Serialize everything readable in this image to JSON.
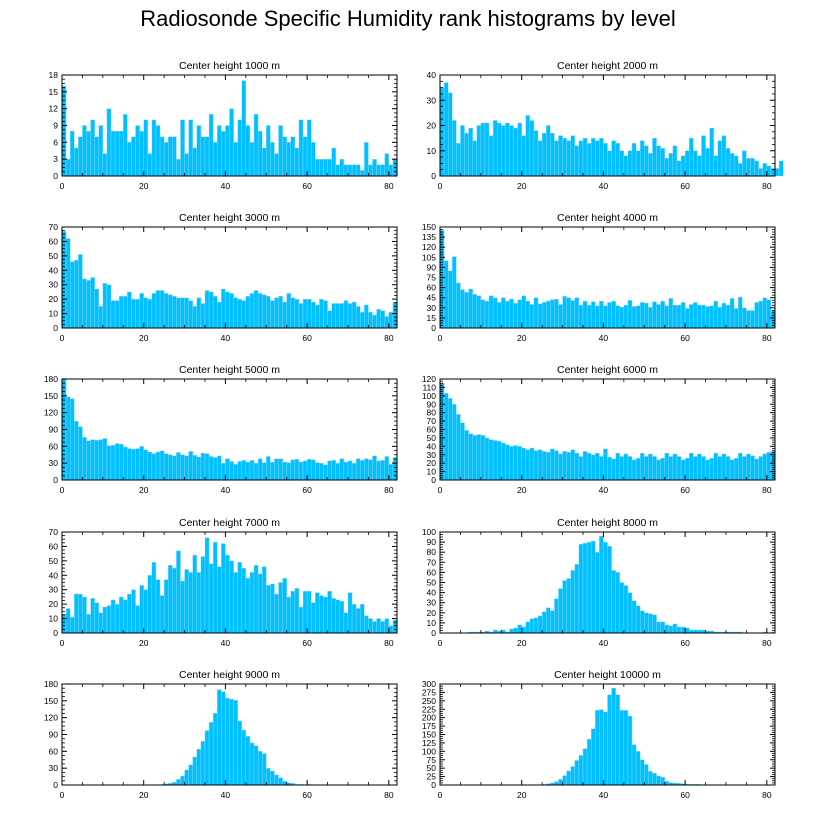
{
  "title": "Radiosonde Specific Humidity rank histograms by level",
  "colors": {
    "bar": "#00c0ff",
    "bar_edge": "#8fdcff",
    "axis": "#000000"
  },
  "chart_data": [
    {
      "type": "bar",
      "title": "Center height 1000 m",
      "xlim": [
        0,
        82
      ],
      "ylim": [
        0,
        18
      ],
      "yticks": [
        0,
        3,
        6,
        9,
        12,
        15,
        18
      ],
      "xticks": [
        0,
        20,
        40,
        60,
        80
      ],
      "values": [
        16,
        3,
        8,
        5,
        7,
        9,
        8,
        10,
        7,
        9,
        4,
        12,
        8,
        8,
        8,
        11,
        6,
        7,
        9,
        8,
        10,
        4,
        10,
        9,
        7,
        6,
        7,
        7,
        3,
        10,
        4,
        10,
        5,
        9,
        7,
        7,
        11,
        6,
        9,
        8,
        9,
        12,
        6,
        10,
        17,
        9,
        6,
        11,
        8,
        5,
        9,
        6,
        4,
        9,
        7,
        6,
        7,
        5,
        10,
        7,
        10,
        6,
        3,
        3,
        3,
        3,
        5,
        2,
        3,
        2,
        2,
        2,
        2,
        1,
        6,
        2,
        3,
        2,
        2,
        4,
        2,
        3
      ]
    },
    {
      "type": "bar",
      "title": "Center height 2000 m",
      "xlim": [
        0,
        82
      ],
      "ylim": [
        0,
        40
      ],
      "yticks": [
        0,
        10,
        20,
        30,
        40
      ],
      "xticks": [
        0,
        20,
        40,
        60,
        80
      ],
      "values": [
        35,
        37,
        33,
        22,
        13,
        20,
        17,
        19,
        14,
        20,
        21,
        21,
        16,
        22,
        21,
        20,
        21,
        20,
        19,
        21,
        16,
        24,
        22,
        18,
        14,
        17,
        20,
        17,
        14,
        16,
        15,
        14,
        16,
        12,
        14,
        15,
        13,
        15,
        14,
        15,
        13,
        10,
        14,
        13,
        10,
        8,
        10,
        13,
        10,
        14,
        12,
        9,
        15,
        12,
        11,
        7,
        9,
        12,
        6,
        8,
        10,
        15,
        10,
        8,
        16,
        11,
        19,
        8,
        14,
        16,
        11,
        9,
        8,
        5,
        10,
        7,
        7,
        6,
        3,
        5,
        4,
        3,
        3,
        6
      ]
    },
    {
      "type": "bar",
      "title": "Center height 3000 m",
      "xlim": [
        0,
        82
      ],
      "ylim": [
        0,
        70
      ],
      "yticks": [
        0,
        10,
        20,
        30,
        40,
        50,
        60,
        70
      ],
      "xticks": [
        0,
        20,
        40,
        60,
        80
      ],
      "values": [
        67,
        62,
        46,
        47,
        51,
        34,
        33,
        35,
        27,
        15,
        31,
        30,
        19,
        19,
        22,
        22,
        25,
        20,
        20,
        24,
        21,
        20,
        24,
        26,
        26,
        24,
        23,
        22,
        21,
        21,
        21,
        19,
        15,
        21,
        17,
        26,
        25,
        22,
        18,
        27,
        25,
        24,
        21,
        20,
        19,
        22,
        24,
        26,
        24,
        23,
        22,
        19,
        21,
        22,
        18,
        24,
        21,
        20,
        17,
        20,
        20,
        18,
        16,
        20,
        19,
        12,
        17,
        17,
        17,
        19,
        17,
        18,
        15,
        11,
        16,
        11,
        9,
        13,
        12,
        8,
        11,
        18
      ]
    },
    {
      "type": "bar",
      "title": "Center height 4000 m",
      "xlim": [
        0,
        82
      ],
      "ylim": [
        0,
        150
      ],
      "yticks": [
        0,
        15,
        30,
        45,
        60,
        75,
        90,
        105,
        120,
        135,
        150
      ],
      "xticks": [
        0,
        20,
        40,
        60,
        80
      ],
      "values": [
        145,
        100,
        85,
        106,
        67,
        57,
        53,
        58,
        50,
        48,
        42,
        40,
        48,
        45,
        38,
        45,
        40,
        43,
        37,
        42,
        48,
        40,
        35,
        45,
        36,
        38,
        40,
        42,
        43,
        35,
        47,
        45,
        41,
        45,
        34,
        40,
        34,
        39,
        33,
        40,
        33,
        38,
        40,
        33,
        31,
        34,
        41,
        32,
        33,
        38,
        37,
        31,
        39,
        35,
        40,
        33,
        44,
        34,
        34,
        38,
        29,
        35,
        38,
        34,
        34,
        32,
        33,
        40,
        31,
        37,
        34,
        44,
        29,
        46,
        30,
        26,
        26,
        38,
        40,
        45,
        42,
        26
      ]
    },
    {
      "type": "bar",
      "title": "Center height 5000 m",
      "xlim": [
        0,
        82
      ],
      "ylim": [
        0,
        180
      ],
      "yticks": [
        0,
        30,
        60,
        90,
        120,
        150,
        180
      ],
      "xticks": [
        0,
        20,
        40,
        60,
        80
      ],
      "values": [
        181,
        148,
        145,
        105,
        95,
        76,
        70,
        72,
        71,
        72,
        74,
        61,
        62,
        65,
        64,
        59,
        56,
        55,
        56,
        60,
        54,
        50,
        47,
        50,
        52,
        47,
        45,
        43,
        49,
        45,
        43,
        51,
        44,
        41,
        48,
        47,
        42,
        40,
        43,
        30,
        38,
        33,
        28,
        33,
        35,
        32,
        35,
        30,
        38,
        31,
        42,
        32,
        38,
        38,
        32,
        31,
        36,
        37,
        32,
        34,
        37,
        36,
        31,
        30,
        27,
        34,
        35,
        30,
        38,
        32,
        34,
        30,
        38,
        35,
        38,
        36,
        43,
        34,
        35,
        42,
        28,
        40
      ]
    },
    {
      "type": "bar",
      "title": "Center height 6000 m",
      "xlim": [
        0,
        82
      ],
      "ylim": [
        0,
        120
      ],
      "yticks": [
        0,
        10,
        20,
        30,
        40,
        50,
        60,
        70,
        80,
        90,
        100,
        110,
        120
      ],
      "xticks": [
        0,
        20,
        40,
        60,
        80
      ],
      "values": [
        115,
        103,
        97,
        90,
        78,
        68,
        59,
        55,
        53,
        54,
        53,
        50,
        48,
        47,
        46,
        44,
        42,
        40,
        41,
        40,
        38,
        36,
        38,
        35,
        36,
        34,
        33,
        37,
        35,
        31,
        34,
        33,
        36,
        32,
        28,
        34,
        32,
        30,
        32,
        28,
        37,
        27,
        25,
        32,
        28,
        31,
        28,
        24,
        26,
        32,
        28,
        31,
        28,
        24,
        26,
        32,
        28,
        31,
        28,
        24,
        26,
        32,
        28,
        31,
        28,
        24,
        26,
        32,
        28,
        31,
        28,
        24,
        26,
        32,
        28,
        31,
        29,
        25,
        28,
        31,
        33,
        34
      ]
    },
    {
      "type": "bar",
      "title": "Center height 7000 m",
      "xlim": [
        0,
        82
      ],
      "ylim": [
        0,
        70
      ],
      "yticks": [
        0,
        10,
        20,
        30,
        40,
        50,
        60,
        70
      ],
      "xticks": [
        0,
        20,
        40,
        60,
        80
      ],
      "values": [
        13,
        17,
        11,
        27,
        27,
        25,
        13,
        24,
        21,
        14,
        18,
        19,
        23,
        20,
        25,
        23,
        27,
        30,
        19,
        33,
        30,
        40,
        49,
        37,
        26,
        37,
        47,
        45,
        57,
        36,
        44,
        42,
        54,
        42,
        53,
        66,
        48,
        63,
        46,
        62,
        54,
        50,
        42,
        49,
        45,
        38,
        42,
        47,
        41,
        46,
        33,
        34,
        27,
        35,
        38,
        25,
        29,
        31,
        18,
        29,
        29,
        21,
        28,
        26,
        25,
        29,
        24,
        23,
        22,
        14,
        28,
        20,
        17,
        20,
        12,
        10,
        8,
        10,
        8,
        10,
        5,
        9
      ]
    },
    {
      "type": "bar",
      "title": "Center height 8000 m",
      "xlim": [
        0,
        82
      ],
      "ylim": [
        0,
        100
      ],
      "yticks": [
        0,
        10,
        20,
        30,
        40,
        50,
        60,
        70,
        80,
        90,
        100
      ],
      "xticks": [
        0,
        20,
        40,
        60,
        80
      ],
      "values": [
        0,
        0,
        0,
        0,
        0,
        0,
        0,
        1,
        1,
        1,
        1,
        2,
        1,
        3,
        2,
        3,
        1,
        4,
        5,
        8,
        6,
        11,
        14,
        15,
        17,
        21,
        25,
        22,
        34,
        44,
        52,
        54,
        62,
        68,
        88,
        89,
        90,
        91,
        80,
        96,
        90,
        86,
        62,
        60,
        50,
        47,
        40,
        32,
        27,
        22,
        20,
        19,
        18,
        11,
        11,
        8,
        7,
        9,
        6,
        6,
        5,
        3,
        3,
        3,
        3,
        2,
        2,
        1,
        1,
        1,
        1,
        1,
        1,
        1,
        0,
        0,
        0,
        0,
        0,
        1,
        0,
        1
      ]
    },
    {
      "type": "bar",
      "title": "Center height 9000 m",
      "xlim": [
        0,
        82
      ],
      "ylim": [
        0,
        180
      ],
      "yticks": [
        0,
        30,
        60,
        90,
        120,
        150,
        180
      ],
      "xticks": [
        0,
        20,
        40,
        60,
        80
      ],
      "values": [
        0,
        0,
        0,
        0,
        0,
        0,
        0,
        0,
        0,
        0,
        0,
        0,
        0,
        0,
        0,
        0,
        0,
        0,
        0,
        0,
        0,
        0,
        0,
        0,
        1,
        2,
        3,
        5,
        10,
        16,
        27,
        36,
        50,
        64,
        78,
        97,
        112,
        128,
        170,
        166,
        155,
        153,
        151,
        114,
        98,
        87,
        75,
        70,
        60,
        56,
        30,
        25,
        18,
        13,
        7,
        4,
        3,
        1,
        1,
        0,
        1,
        0,
        0,
        0,
        0,
        0,
        0,
        0,
        0,
        0,
        0,
        0,
        0,
        0,
        0,
        0,
        0,
        0,
        0,
        0,
        0,
        0
      ]
    },
    {
      "type": "bar",
      "title": "Center height 10000 m",
      "xlim": [
        0,
        82
      ],
      "ylim": [
        0,
        300
      ],
      "yticks": [
        0,
        25,
        50,
        75,
        100,
        125,
        150,
        175,
        200,
        225,
        250,
        275,
        300
      ],
      "xticks": [
        0,
        20,
        40,
        60,
        80
      ],
      "values": [
        0,
        0,
        0,
        0,
        0,
        0,
        0,
        0,
        0,
        0,
        0,
        0,
        0,
        0,
        0,
        0,
        0,
        0,
        0,
        0,
        0,
        0,
        0,
        0,
        0,
        2,
        4,
        6,
        10,
        17,
        28,
        42,
        55,
        73,
        88,
        108,
        136,
        167,
        222,
        224,
        217,
        268,
        288,
        268,
        222,
        222,
        205,
        120,
        100,
        75,
        61,
        41,
        35,
        27,
        23,
        11,
        7,
        6,
        5,
        4,
        3,
        2,
        2,
        2,
        1,
        1,
        1,
        1,
        1,
        0,
        0,
        0,
        0,
        0,
        0,
        0,
        0,
        0,
        0,
        0,
        0,
        0
      ]
    }
  ]
}
